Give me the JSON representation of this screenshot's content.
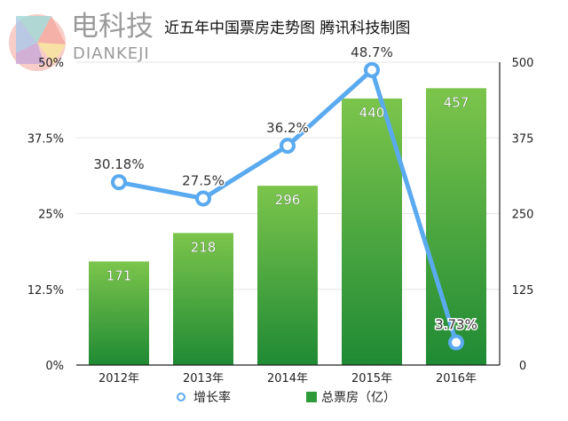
{
  "logo": {
    "cn": "电科技",
    "en": "DIANKEJI"
  },
  "title": "近五年中国票房走势图  腾讯科技制图",
  "chart_data": {
    "type": "bar+line",
    "title": "近五年中国票房走势图  腾讯科技制图",
    "categories": [
      "2012年",
      "2013年",
      "2014年",
      "2015年",
      "2016年"
    ],
    "series": [
      {
        "name": "总票房（亿）",
        "type": "bar",
        "axis": "right",
        "values": [
          171,
          218,
          296,
          440,
          457
        ],
        "labels": [
          "171",
          "218",
          "296",
          "440",
          "457"
        ],
        "color": "#3aa53c"
      },
      {
        "name": "增长率",
        "type": "line",
        "axis": "left",
        "values": [
          30.18,
          27.5,
          36.2,
          48.7,
          3.73
        ],
        "labels": [
          "30.18%",
          "27.5%",
          "36.2%",
          "48.7%",
          "3.73%"
        ],
        "color": "#5aaaf0"
      }
    ],
    "left_axis": {
      "ylim": [
        0,
        50
      ],
      "ticks": [
        "0%",
        "12.5%",
        "25%",
        "37.5%",
        "50%"
      ]
    },
    "right_axis": {
      "ylim": [
        0,
        500
      ],
      "ticks": [
        "0",
        "125",
        "250",
        "375",
        "500"
      ]
    },
    "legend": {
      "placement": "bottom",
      "items": [
        "增长率",
        "总票房（亿）"
      ]
    },
    "grid": true
  }
}
